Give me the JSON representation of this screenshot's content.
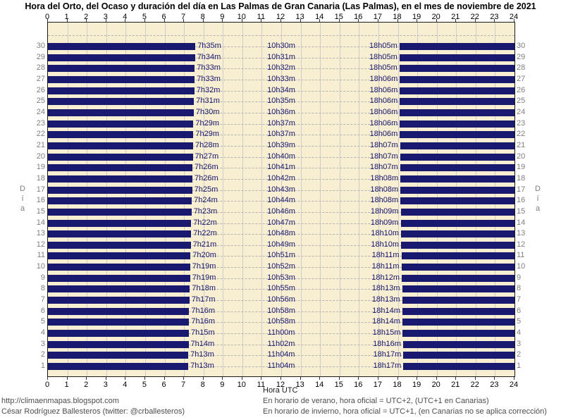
{
  "title": "Hora del Orto, del Ocaso y duración del día en Las Palmas de Gran Canaria (Las Palmas), en el mes de noviembre de 2021",
  "x_axis": {
    "label": "Hora UTC"
  },
  "y_axis": {
    "label": "Día"
  },
  "footer": {
    "left_line1": "http://climaenmapas.blogspot.com",
    "left_line2": "César Rodríguez Ballesteros (twitter: @crballesteros)",
    "right_line1": "En horario de verano, hora oficial = UTC+2, (UTC+1 en Canarias)",
    "right_line2": "En horario de invierno, hora oficial = UTC+1, (en Canarias no se aplica corrección)"
  },
  "colors": {
    "bar": "#191970",
    "value_text": "#191970",
    "plot_background": "#f8eed2",
    "grid_line": "#cdcdcd",
    "dashed_line": "#b3b3b3",
    "day_label": "#808080",
    "axis_text": "#000000"
  },
  "chart_data": {
    "type": "bar",
    "orientation": "horizontal",
    "description": "Left bar = night before sunrise (0h to orto), right bar = night after sunset (ocaso to 24h); labels show sunrise time, day duration, sunset time (UTC).",
    "x_range": [
      0,
      24
    ],
    "x_ticks": [
      0,
      1,
      2,
      3,
      4,
      5,
      6,
      7,
      8,
      9,
      10,
      11,
      12,
      13,
      14,
      15,
      16,
      17,
      18,
      19,
      20,
      21,
      22,
      23,
      24
    ],
    "grid": true,
    "rows_order": "top_to_bottom_day_30_to_1",
    "days": [
      {
        "day": 30,
        "sunrise": "7h35m",
        "duration": "10h30m",
        "sunset": "18h05m"
      },
      {
        "day": 29,
        "sunrise": "7h34m",
        "duration": "10h31m",
        "sunset": "18h05m"
      },
      {
        "day": 28,
        "sunrise": "7h33m",
        "duration": "10h32m",
        "sunset": "18h05m"
      },
      {
        "day": 27,
        "sunrise": "7h33m",
        "duration": "10h33m",
        "sunset": "18h06m"
      },
      {
        "day": 26,
        "sunrise": "7h32m",
        "duration": "10h34m",
        "sunset": "18h06m"
      },
      {
        "day": 25,
        "sunrise": "7h31m",
        "duration": "10h35m",
        "sunset": "18h06m"
      },
      {
        "day": 24,
        "sunrise": "7h30m",
        "duration": "10h36m",
        "sunset": "18h06m"
      },
      {
        "day": 23,
        "sunrise": "7h29m",
        "duration": "10h37m",
        "sunset": "18h06m"
      },
      {
        "day": 22,
        "sunrise": "7h29m",
        "duration": "10h37m",
        "sunset": "18h06m"
      },
      {
        "day": 21,
        "sunrise": "7h28m",
        "duration": "10h39m",
        "sunset": "18h07m"
      },
      {
        "day": 20,
        "sunrise": "7h27m",
        "duration": "10h40m",
        "sunset": "18h07m"
      },
      {
        "day": 19,
        "sunrise": "7h26m",
        "duration": "10h41m",
        "sunset": "18h07m"
      },
      {
        "day": 18,
        "sunrise": "7h26m",
        "duration": "10h42m",
        "sunset": "18h08m"
      },
      {
        "day": 17,
        "sunrise": "7h25m",
        "duration": "10h43m",
        "sunset": "18h08m"
      },
      {
        "day": 16,
        "sunrise": "7h24m",
        "duration": "10h44m",
        "sunset": "18h08m"
      },
      {
        "day": 15,
        "sunrise": "7h23m",
        "duration": "10h46m",
        "sunset": "18h09m"
      },
      {
        "day": 14,
        "sunrise": "7h22m",
        "duration": "10h47m",
        "sunset": "18h09m"
      },
      {
        "day": 13,
        "sunrise": "7h22m",
        "duration": "10h48m",
        "sunset": "18h10m"
      },
      {
        "day": 12,
        "sunrise": "7h21m",
        "duration": "10h49m",
        "sunset": "18h10m"
      },
      {
        "day": 11,
        "sunrise": "7h20m",
        "duration": "10h51m",
        "sunset": "18h11m"
      },
      {
        "day": 10,
        "sunrise": "7h19m",
        "duration": "10h52m",
        "sunset": "18h11m"
      },
      {
        "day": 9,
        "sunrise": "7h19m",
        "duration": "10h53m",
        "sunset": "18h12m"
      },
      {
        "day": 8,
        "sunrise": "7h18m",
        "duration": "10h55m",
        "sunset": "18h13m"
      },
      {
        "day": 7,
        "sunrise": "7h17m",
        "duration": "10h56m",
        "sunset": "18h13m"
      },
      {
        "day": 6,
        "sunrise": "7h16m",
        "duration": "10h58m",
        "sunset": "18h14m"
      },
      {
        "day": 5,
        "sunrise": "7h16m",
        "duration": "10h58m",
        "sunset": "18h14m"
      },
      {
        "day": 4,
        "sunrise": "7h15m",
        "duration": "11h00m",
        "sunset": "18h15m"
      },
      {
        "day": 3,
        "sunrise": "7h14m",
        "duration": "11h02m",
        "sunset": "18h16m"
      },
      {
        "day": 2,
        "sunrise": "7h13m",
        "duration": "11h04m",
        "sunset": "18h17m"
      },
      {
        "day": 1,
        "sunrise": "7h13m",
        "duration": "11h04m",
        "sunset": "18h17m"
      }
    ]
  }
}
